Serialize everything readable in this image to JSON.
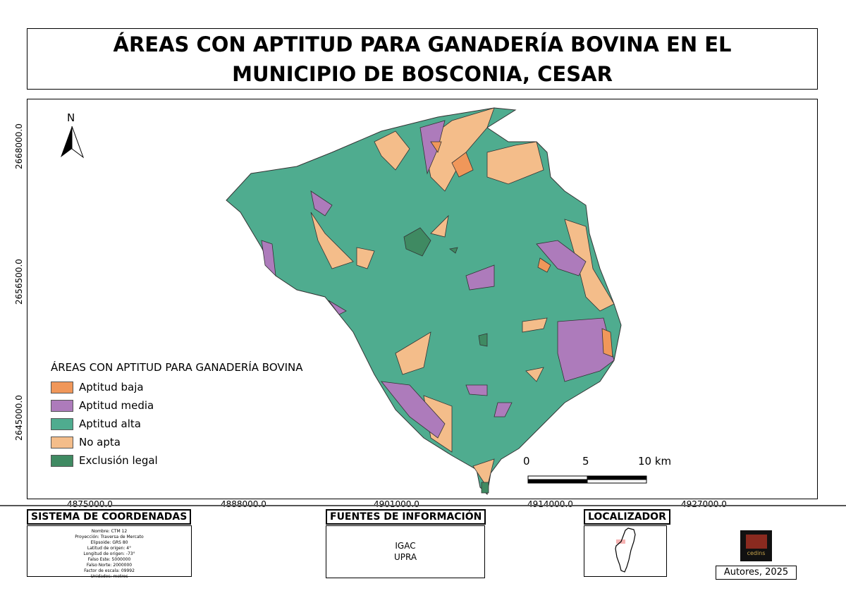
{
  "title": "ÁREAS CON APTITUD PARA GANADERÍA BOVINA EN EL MUNICIPIO DE BOSCONIA, CESAR",
  "north": "N",
  "y_ticks": [
    "2668000.0",
    "2656500.0",
    "2645000.0"
  ],
  "x_ticks": [
    "4875000.0",
    "4888000.0",
    "4901000.0",
    "4914000.0",
    "4927000.0"
  ],
  "legend": {
    "title": "ÁREAS CON APTITUD PARA GANADERÍA BOVINA",
    "items": [
      {
        "label": "Aptitud baja",
        "color": "#f0975a"
      },
      {
        "label": "Aptitud media",
        "color": "#ad7bbb"
      },
      {
        "label": "Aptitud alta",
        "color": "#4fac8f"
      },
      {
        "label": "No apta",
        "color": "#f4bd8a"
      },
      {
        "label": "Exclusión legal",
        "color": "#3f8a62"
      }
    ]
  },
  "scale": {
    "labels": [
      "0",
      "5",
      "10 km"
    ]
  },
  "coord_system": {
    "header": "SISTEMA DE COORDENADAS",
    "lines": [
      "Nombre: CTM 12",
      "Proyección: Traversa de Mercato",
      "Elipsoide: GRS 80",
      "Latitud de origen: 4°",
      "Longitud de origen: -73°",
      "Falso Este: 5000000",
      "Falso Norte: 2000000",
      "Factor de escala: 09992",
      "Unidades: metros"
    ]
  },
  "sources": {
    "header": "FUENTES DE INFORMACIÓN",
    "lines": [
      "IGAC",
      "UPRA"
    ]
  },
  "locator": {
    "header": "LOCALIZADOR"
  },
  "logo": {
    "text": "cedins"
  },
  "authors": "Autores, 2025"
}
